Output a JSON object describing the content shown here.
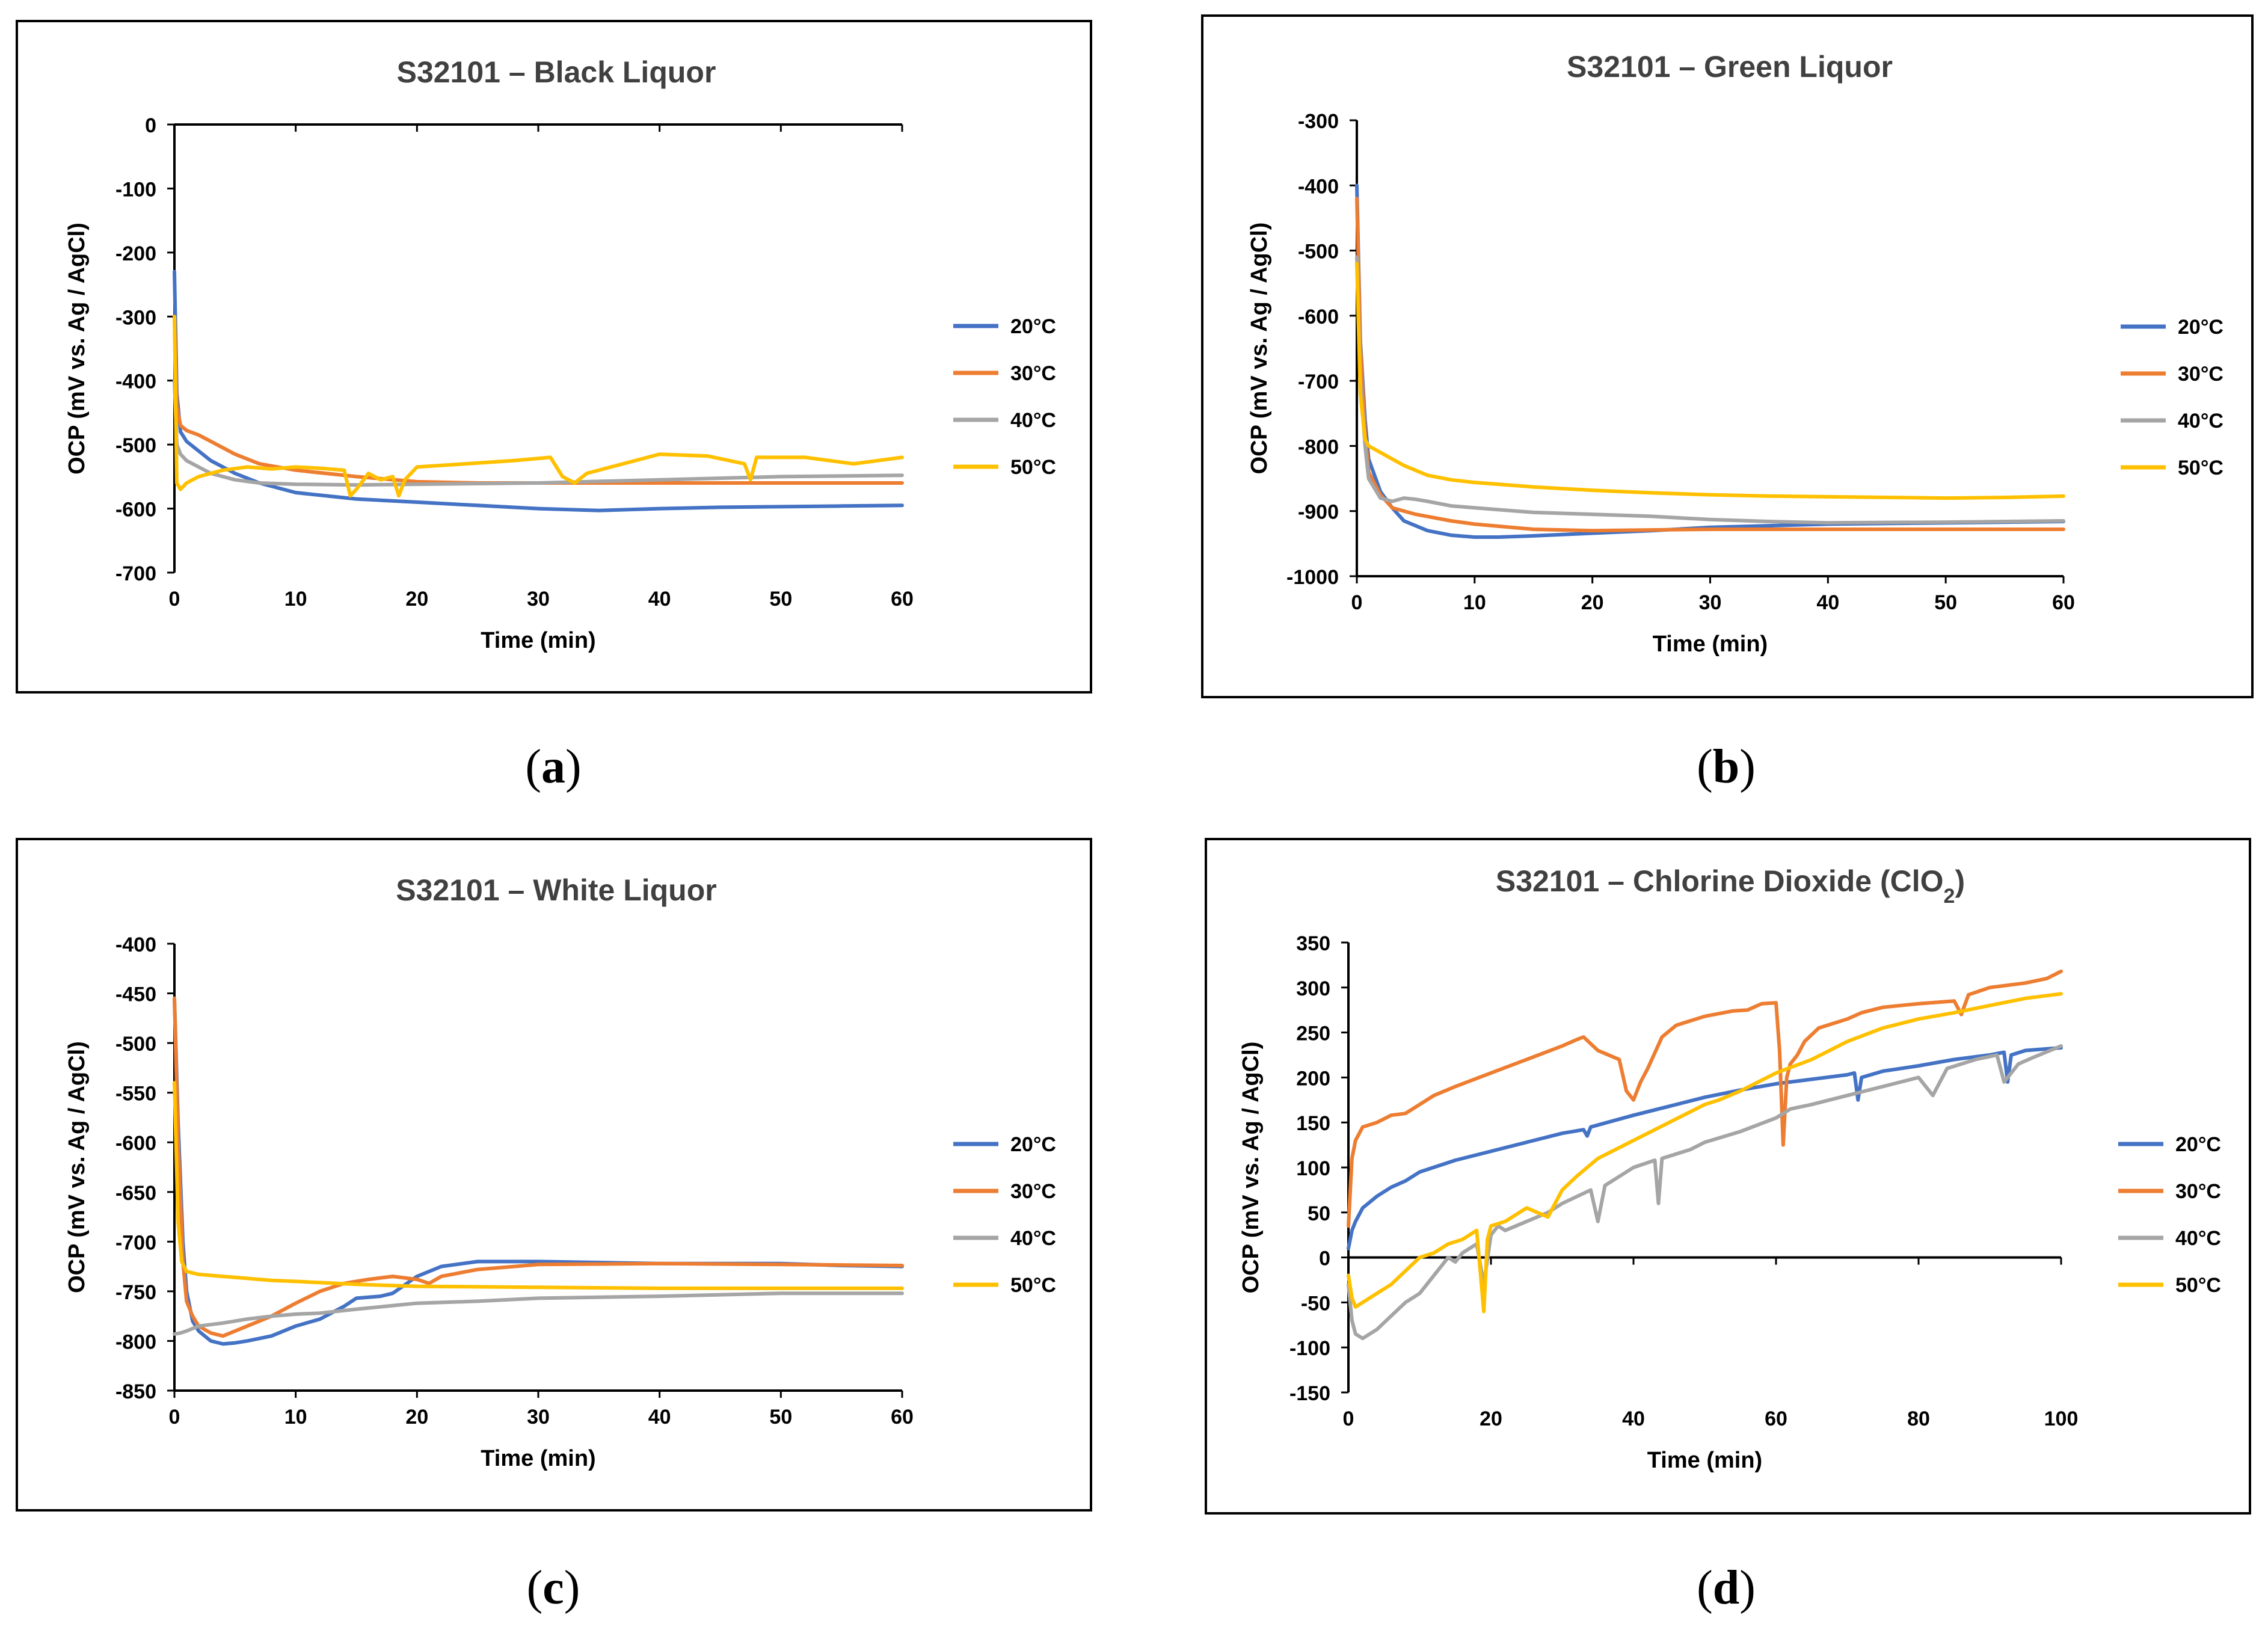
{
  "colors": {
    "20C": "#4472C4",
    "30C": "#ED7D31",
    "40C": "#A5A5A5",
    "50C": "#FFC000"
  },
  "captions": [
    {
      "open": "(",
      "letter": "a",
      "close": ")"
    },
    {
      "open": "(",
      "letter": "b",
      "close": ")"
    },
    {
      "open": "(",
      "letter": "c",
      "close": ")"
    },
    {
      "open": "(",
      "letter": "d",
      "close": ")"
    }
  ],
  "chart_data": [
    {
      "type": "line",
      "title": "S32101 – Black Liquor",
      "title_sub": "",
      "title_suffix": "",
      "xlabel": "Time (min)",
      "ylabel": "OCP (mV vs. Ag / AgCl)",
      "xlim": [
        0,
        60
      ],
      "ylim": [
        -700,
        0
      ],
      "xticks": [
        0,
        10,
        20,
        30,
        40,
        50,
        60
      ],
      "yticks": [
        0,
        -100,
        -200,
        -300,
        -400,
        -500,
        -600,
        -700
      ],
      "legend": "right",
      "series": [
        {
          "name": "20°C",
          "color_key": "20C",
          "x": [
            0,
            0.2,
            0.5,
            1,
            2,
            3,
            5,
            7,
            10,
            15,
            20,
            25,
            30,
            35,
            40,
            45,
            50,
            55,
            60
          ],
          "y": [
            -230,
            -420,
            -480,
            -495,
            -510,
            -525,
            -545,
            -560,
            -575,
            -585,
            -590,
            -595,
            -600,
            -603,
            -600,
            -598,
            -597,
            -596,
            -595
          ]
        },
        {
          "name": "30°C",
          "color_key": "30C",
          "x": [
            0,
            0.2,
            0.5,
            1,
            2,
            3,
            5,
            7,
            10,
            15,
            20,
            25,
            30,
            40,
            50,
            60
          ],
          "y": [
            -300,
            -440,
            -470,
            -478,
            -485,
            -495,
            -515,
            -530,
            -540,
            -550,
            -558,
            -560,
            -560,
            -560,
            -560,
            -560
          ]
        },
        {
          "name": "40°C",
          "color_key": "40C",
          "x": [
            0,
            0.2,
            0.5,
            1,
            2,
            3,
            5,
            7,
            10,
            15,
            20,
            30,
            40,
            50,
            60
          ],
          "y": [
            -400,
            -500,
            -515,
            -525,
            -535,
            -545,
            -555,
            -560,
            -562,
            -563,
            -562,
            -560,
            -555,
            -550,
            -548
          ]
        },
        {
          "name": "50°C",
          "color_key": "50C",
          "x": [
            0,
            0.2,
            0.5,
            1,
            2,
            4,
            6,
            8,
            10,
            12,
            14,
            14.5,
            15,
            16,
            17,
            18,
            18.5,
            19,
            20,
            24,
            28,
            31,
            32,
            33,
            34,
            36,
            40,
            44,
            47,
            47.5,
            48,
            52,
            56,
            58,
            60
          ],
          "y": [
            -300,
            -560,
            -570,
            -560,
            -550,
            -540,
            -535,
            -538,
            -535,
            -537,
            -540,
            -580,
            -570,
            -545,
            -555,
            -550,
            -580,
            -555,
            -535,
            -530,
            -525,
            -520,
            -550,
            -560,
            -545,
            -535,
            -515,
            -518,
            -530,
            -555,
            -520,
            -520,
            -530,
            -525,
            -520
          ]
        }
      ]
    },
    {
      "type": "line",
      "title": "S32101 – Green Liquor",
      "title_sub": "",
      "title_suffix": "",
      "xlabel": "Time (min)",
      "ylabel": "OCP (mV vs. Ag / AgCl)",
      "xlim": [
        0,
        60
      ],
      "ylim": [
        -1000,
        -300
      ],
      "xticks": [
        0,
        10,
        20,
        30,
        40,
        50,
        60
      ],
      "yticks": [
        -300,
        -400,
        -500,
        -600,
        -700,
        -800,
        -900,
        -1000
      ],
      "legend": "right",
      "series": [
        {
          "name": "20°C",
          "color_key": "20C",
          "x": [
            0,
            0.3,
            0.7,
            1,
            2,
            3,
            4,
            6,
            8,
            10,
            12,
            15,
            20,
            25,
            30,
            40,
            50,
            60
          ],
          "y": [
            -400,
            -640,
            -760,
            -820,
            -870,
            -895,
            -915,
            -930,
            -937,
            -940,
            -940,
            -938,
            -934,
            -930,
            -925,
            -920,
            -918,
            -916
          ]
        },
        {
          "name": "30°C",
          "color_key": "30C",
          "x": [
            0,
            0.3,
            0.7,
            1,
            2,
            3,
            5,
            8,
            10,
            15,
            20,
            30,
            40,
            50,
            60
          ],
          "y": [
            -420,
            -650,
            -780,
            -840,
            -875,
            -895,
            -905,
            -915,
            -920,
            -928,
            -930,
            -928,
            -928,
            -928,
            -928
          ]
        },
        {
          "name": "40°C",
          "color_key": "40C",
          "x": [
            0,
            0.3,
            0.7,
            1,
            2,
            3,
            4,
            5,
            6,
            8,
            10,
            15,
            20,
            25,
            30,
            35,
            40,
            50,
            60
          ],
          "y": [
            -510,
            -700,
            -800,
            -850,
            -880,
            -885,
            -880,
            -882,
            -885,
            -892,
            -895,
            -902,
            -905,
            -908,
            -913,
            -916,
            -918,
            -917,
            -915
          ]
        },
        {
          "name": "50°C",
          "color_key": "50C",
          "x": [
            0,
            0.3,
            0.7,
            1,
            2,
            3,
            4,
            6,
            8,
            10,
            15,
            20,
            25,
            30,
            35,
            40,
            50,
            55,
            60
          ],
          "y": [
            -520,
            -720,
            -790,
            -800,
            -810,
            -820,
            -830,
            -845,
            -852,
            -856,
            -863,
            -868,
            -872,
            -875,
            -877,
            -878,
            -880,
            -879,
            -877
          ]
        }
      ]
    },
    {
      "type": "line",
      "title": "S32101 – White Liquor",
      "title_sub": "",
      "title_suffix": "",
      "xlabel": "Time (min)",
      "ylabel": "OCP (mV vs. Ag / AgCl)",
      "xlim": [
        0,
        60
      ],
      "ylim": [
        -850,
        -400
      ],
      "xticks": [
        0,
        10,
        20,
        30,
        40,
        50,
        60
      ],
      "yticks": [
        -400,
        -450,
        -500,
        -550,
        -600,
        -650,
        -700,
        -750,
        -800,
        -850
      ],
      "legend": "right",
      "series": [
        {
          "name": "20°C",
          "color_key": "20C",
          "x": [
            0,
            0.3,
            0.7,
            1,
            1.5,
            2,
            3,
            4,
            5,
            6,
            8,
            10,
            12,
            14,
            15,
            17,
            18,
            20,
            22,
            25,
            30,
            40,
            50,
            55,
            60
          ],
          "y": [
            -455,
            -580,
            -700,
            -750,
            -780,
            -790,
            -800,
            -803,
            -802,
            -800,
            -795,
            -785,
            -778,
            -765,
            -757,
            -755,
            -752,
            -735,
            -725,
            -720,
            -720,
            -722,
            -722,
            -724,
            -725
          ]
        },
        {
          "name": "30°C",
          "color_key": "30C",
          "x": [
            0,
            0.3,
            0.7,
            1,
            1.5,
            2,
            3,
            4,
            6,
            8,
            10,
            12,
            14,
            16,
            18,
            20,
            21,
            22,
            25,
            30,
            40,
            50,
            60
          ],
          "y": [
            -455,
            -600,
            -720,
            -760,
            -775,
            -785,
            -792,
            -795,
            -785,
            -775,
            -762,
            -750,
            -742,
            -738,
            -735,
            -738,
            -742,
            -735,
            -728,
            -723,
            -722,
            -723,
            -724
          ]
        },
        {
          "name": "40°C",
          "color_key": "40C",
          "x": [
            0,
            0.5,
            1,
            2,
            4,
            6,
            8,
            10,
            12,
            15,
            20,
            25,
            30,
            40,
            50,
            60
          ],
          "y": [
            -793,
            -792,
            -790,
            -785,
            -782,
            -778,
            -775,
            -773,
            -772,
            -768,
            -762,
            -760,
            -757,
            -755,
            -752,
            -752
          ]
        },
        {
          "name": "50°C",
          "color_key": "50C",
          "x": [
            0,
            0.3,
            0.6,
            1,
            2,
            4,
            6,
            8,
            10,
            15,
            20,
            30,
            40,
            50,
            60
          ],
          "y": [
            -540,
            -680,
            -720,
            -730,
            -733,
            -735,
            -737,
            -739,
            -740,
            -743,
            -745,
            -746,
            -747,
            -747,
            -747
          ]
        }
      ]
    },
    {
      "type": "line",
      "title": "S32101 – Chlorine Dioxide (ClO",
      "title_sub": "2",
      "title_suffix": ")",
      "xlabel": "Time (min)",
      "ylabel": "OCP (mV vs. Ag / AgCl)",
      "xlim": [
        0,
        100
      ],
      "ylim": [
        -150,
        350
      ],
      "xticks": [
        0,
        20,
        40,
        60,
        80,
        100
      ],
      "yticks": [
        350,
        300,
        250,
        200,
        150,
        100,
        50,
        0,
        -50,
        -100,
        -150
      ],
      "legend": "right",
      "series": [
        {
          "name": "20°C",
          "color_key": "20C",
          "x": [
            0,
            0.5,
            1,
            2,
            4,
            6,
            8,
            10,
            15,
            20,
            25,
            30,
            33,
            33.5,
            34,
            40,
            45,
            50,
            55,
            60,
            65,
            70,
            71,
            71.5,
            72,
            75,
            80,
            85,
            90,
            92,
            92.5,
            93,
            95,
            100
          ],
          "y": [
            10,
            30,
            40,
            55,
            68,
            78,
            85,
            95,
            108,
            118,
            128,
            138,
            142,
            135,
            145,
            158,
            168,
            178,
            186,
            193,
            198,
            203,
            205,
            175,
            200,
            207,
            213,
            220,
            225,
            228,
            195,
            225,
            230,
            233
          ]
        },
        {
          "name": "30°C",
          "color_key": "30C",
          "x": [
            0,
            0.5,
            1,
            2,
            4,
            6,
            8,
            10,
            12,
            15,
            20,
            25,
            30,
            32,
            33,
            35,
            38,
            39,
            40,
            41,
            42,
            44,
            46,
            50,
            54,
            56,
            58,
            60,
            60.5,
            61,
            61.5,
            62,
            63,
            64,
            66,
            70,
            72,
            75,
            80,
            85,
            86,
            87,
            90,
            95,
            98,
            100
          ],
          "y": [
            35,
            110,
            130,
            145,
            150,
            158,
            160,
            170,
            180,
            190,
            205,
            220,
            235,
            242,
            245,
            230,
            220,
            185,
            175,
            195,
            210,
            245,
            258,
            268,
            274,
            275,
            282,
            283,
            230,
            125,
            200,
            215,
            225,
            240,
            255,
            265,
            272,
            278,
            282,
            285,
            270,
            292,
            300,
            305,
            310,
            318
          ]
        },
        {
          "name": "40°C",
          "color_key": "40C",
          "x": [
            0,
            0.5,
            1,
            2,
            4,
            6,
            8,
            10,
            12,
            14,
            15,
            16,
            18,
            19,
            20,
            21,
            22,
            25,
            28,
            30,
            34,
            35,
            36,
            38,
            40,
            43,
            43.5,
            44,
            48,
            50,
            55,
            60,
            62,
            65,
            70,
            75,
            80,
            82,
            84,
            88,
            91,
            92,
            94,
            96,
            100
          ],
          "y": [
            -30,
            -70,
            -85,
            -90,
            -80,
            -65,
            -50,
            -40,
            -20,
            0,
            -5,
            5,
            15,
            -30,
            25,
            35,
            30,
            40,
            50,
            60,
            75,
            40,
            80,
            90,
            100,
            108,
            60,
            110,
            120,
            128,
            140,
            155,
            165,
            170,
            180,
            190,
            200,
            180,
            210,
            220,
            225,
            195,
            215,
            222,
            235
          ]
        },
        {
          "name": "50°C",
          "color_key": "50C",
          "x": [
            0,
            0.5,
            1,
            2,
            4,
            6,
            8,
            10,
            12,
            14,
            16,
            18,
            19,
            19.5,
            20,
            22,
            25,
            28,
            30,
            32,
            35,
            40,
            45,
            50,
            52,
            55,
            60,
            65,
            70,
            75,
            80,
            85,
            90,
            95,
            100
          ],
          "y": [
            -20,
            -45,
            -55,
            -50,
            -40,
            -30,
            -15,
            0,
            5,
            15,
            20,
            30,
            -60,
            20,
            35,
            40,
            55,
            45,
            75,
            90,
            110,
            130,
            150,
            170,
            175,
            185,
            205,
            220,
            240,
            255,
            265,
            272,
            280,
            288,
            293
          ]
        }
      ]
    }
  ]
}
